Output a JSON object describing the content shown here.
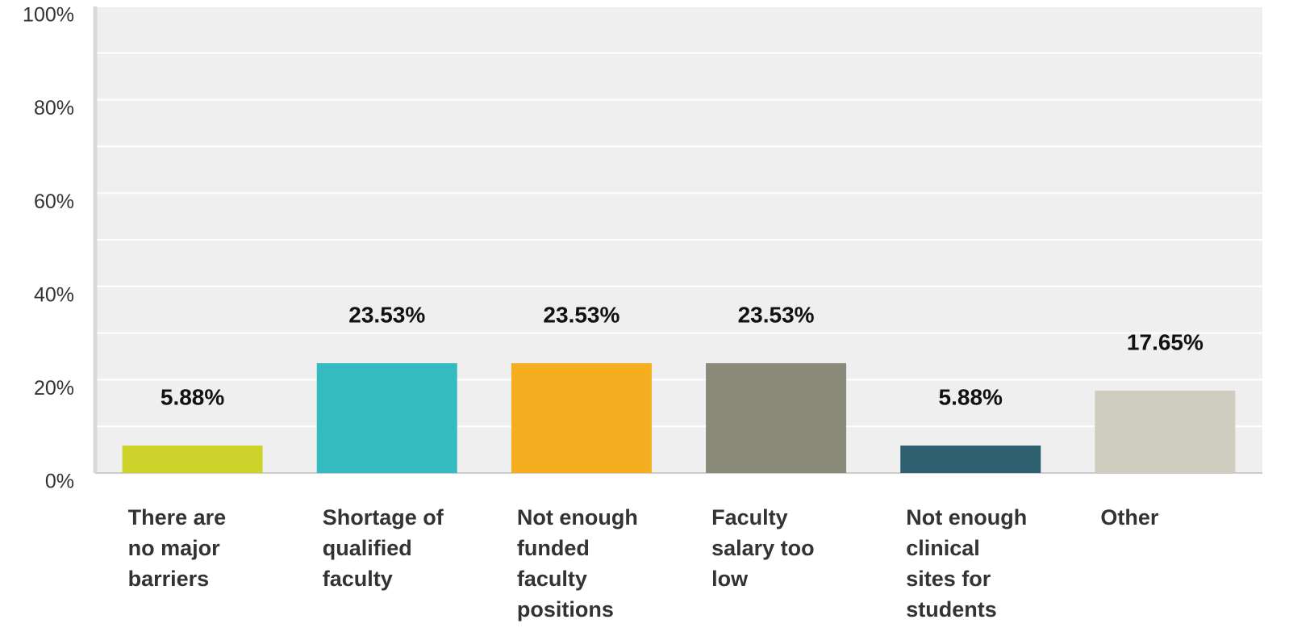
{
  "chart_data": {
    "type": "bar",
    "categories": [
      "There are no major barriers",
      "Shortage of qualified faculty",
      "Not enough funded faculty positions",
      "Faculty salary too low",
      "Not enough clinical sites for students",
      "Other"
    ],
    "values": [
      5.88,
      23.53,
      23.53,
      23.53,
      5.88,
      17.65
    ],
    "value_labels": [
      "5.88%",
      "23.53%",
      "23.53%",
      "23.53%",
      "5.88%",
      "17.65%"
    ],
    "colors": [
      "#cdd32a",
      "#33bbbf",
      "#f5ae20",
      "#8a8a7a",
      "#2e5f6e",
      "#cfcdc0"
    ],
    "ylim": [
      0,
      100
    ],
    "yticks": [
      {
        "value": 0,
        "label": "0%"
      },
      {
        "value": 20,
        "label": "20%"
      },
      {
        "value": 40,
        "label": "40%"
      },
      {
        "value": 60,
        "label": "60%"
      },
      {
        "value": 80,
        "label": "80%"
      },
      {
        "value": 100,
        "label": "100%"
      }
    ],
    "minor_yticks": [
      10,
      30,
      50,
      70,
      90
    ],
    "grid": true
  }
}
